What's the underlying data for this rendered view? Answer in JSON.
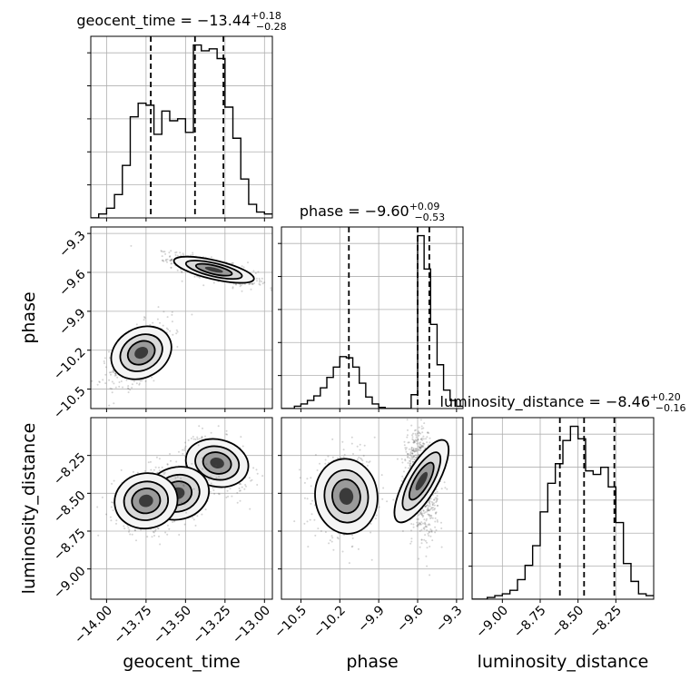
{
  "chart_data": {
    "type": "corner",
    "parameters": [
      "geocent_time",
      "phase",
      "luminosity_distance"
    ],
    "axis_labels": {
      "geocent_time": "geocent_time",
      "phase": "phase",
      "luminosity_distance": "luminosity_distance"
    },
    "titles": {
      "geocent_time": {
        "prefix": "geocent_time = −13.44",
        "plus": "+0.18",
        "minus": "−0.28"
      },
      "phase": {
        "prefix": "phase = −9.60",
        "plus": "+0.09",
        "minus": "−0.53"
      },
      "luminosity_distance": {
        "prefix": "luminosity_distance = −8.46",
        "plus": "+0.20",
        "minus": "−0.16"
      }
    },
    "ranges": {
      "geocent_time": [
        -14.1,
        -12.95
      ],
      "phase": [
        -10.65,
        -9.25
      ],
      "luminosity_distance": [
        -9.2,
        -8.0
      ]
    },
    "ticks": {
      "geocent_time": [
        -14.0,
        -13.75,
        -13.5,
        -13.25,
        -13.0
      ],
      "phase": [
        -10.5,
        -10.2,
        -9.9,
        -9.6,
        -9.3
      ],
      "luminosity_distance": [
        -9.0,
        -8.75,
        -8.5,
        -8.25
      ]
    },
    "tick_labels": {
      "geocent_time": [
        "−14.00",
        "−13.75",
        "−13.50",
        "−13.25",
        "−13.00"
      ],
      "phase": [
        "−10.5",
        "−10.2",
        "−9.9",
        "−9.6",
        "−9.3"
      ],
      "luminosity_distance": [
        "−9.00",
        "−8.75",
        "−8.50",
        "−8.25"
      ]
    },
    "quantiles": {
      "geocent_time": [
        -13.72,
        -13.44,
        -13.26
      ],
      "phase": [
        -10.13,
        -9.6,
        -9.51
      ],
      "luminosity_distance": [
        -8.62,
        -8.46,
        -8.26
      ]
    },
    "histograms": {
      "geocent_time": {
        "edges": [
          -14.1,
          -14.05,
          -14.0,
          -13.95,
          -13.9,
          -13.85,
          -13.8,
          -13.75,
          -13.7,
          -13.65,
          -13.6,
          -13.55,
          -13.5,
          -13.45,
          -13.4,
          -13.35,
          -13.3,
          -13.25,
          -13.2,
          -13.15,
          -13.1,
          -13.05,
          -13.0,
          -12.95
        ],
        "counts": [
          0,
          2,
          5,
          12,
          27,
          52,
          59,
          58,
          43,
          55,
          50,
          51,
          44,
          89,
          86,
          87,
          82,
          57,
          41,
          20,
          7,
          3,
          2
        ]
      },
      "phase": {
        "edges": [
          -10.65,
          -10.6,
          -10.55,
          -10.5,
          -10.45,
          -10.4,
          -10.35,
          -10.3,
          -10.25,
          -10.2,
          -10.15,
          -10.1,
          -10.05,
          -10.0,
          -9.95,
          -9.9,
          -9.85,
          -9.8,
          -9.75,
          -9.7,
          -9.65,
          -9.6,
          -9.55,
          -9.5,
          -9.45,
          -9.4,
          -9.35,
          -9.3,
          -9.25
        ],
        "counts": [
          0,
          0,
          2,
          4,
          7,
          11,
          18,
          27,
          36,
          45,
          44,
          36,
          22,
          10,
          4,
          1,
          0,
          0,
          0,
          0,
          12,
          150,
          121,
          73,
          38,
          16,
          7,
          2
        ]
      },
      "luminosity_distance": {
        "edges": [
          -9.2,
          -9.15,
          -9.1,
          -9.05,
          -9.0,
          -8.95,
          -8.9,
          -8.85,
          -8.8,
          -8.75,
          -8.7,
          -8.65,
          -8.6,
          -8.55,
          -8.5,
          -8.45,
          -8.4,
          -8.35,
          -8.3,
          -8.25,
          -8.2,
          -8.15,
          -8.1,
          -8.05,
          -8.0
        ],
        "counts": [
          0,
          0,
          1,
          2,
          3,
          5,
          11,
          19,
          30,
          49,
          65,
          76,
          89,
          97,
          90,
          72,
          70,
          74,
          63,
          43,
          20,
          10,
          3,
          2
        ]
      }
    },
    "panels_2d": [
      {
        "x": "geocent_time",
        "y": "phase",
        "modes": [
          {
            "x": -13.32,
            "y": -9.58,
            "sx": 0.13,
            "sy": 0.055,
            "rho": -0.75,
            "weight": 0.65
          },
          {
            "x": -13.78,
            "y": -10.22,
            "sx": 0.1,
            "sy": 0.13,
            "rho": 0.6,
            "weight": 0.35
          }
        ]
      },
      {
        "x": "geocent_time",
        "y": "luminosity_distance",
        "modes": [
          {
            "x": -13.3,
            "y": -8.3,
            "sx": 0.1,
            "sy": 0.09,
            "rho": -0.3,
            "weight": 0.35
          },
          {
            "x": -13.55,
            "y": -8.5,
            "sx": 0.1,
            "sy": 0.1,
            "rho": 0.3,
            "weight": 0.3
          },
          {
            "x": -13.75,
            "y": -8.55,
            "sx": 0.1,
            "sy": 0.1,
            "rho": 0.2,
            "weight": 0.35
          }
        ]
      },
      {
        "x": "phase",
        "y": "luminosity_distance",
        "modes": [
          {
            "x": -10.15,
            "y": -8.52,
            "sx": 0.12,
            "sy": 0.13,
            "rho": 0.1,
            "weight": 0.35
          },
          {
            "x": -9.57,
            "y": -8.42,
            "sx": 0.06,
            "sy": 0.17,
            "rho": -0.2,
            "weight": 0.65
          }
        ]
      }
    ]
  }
}
